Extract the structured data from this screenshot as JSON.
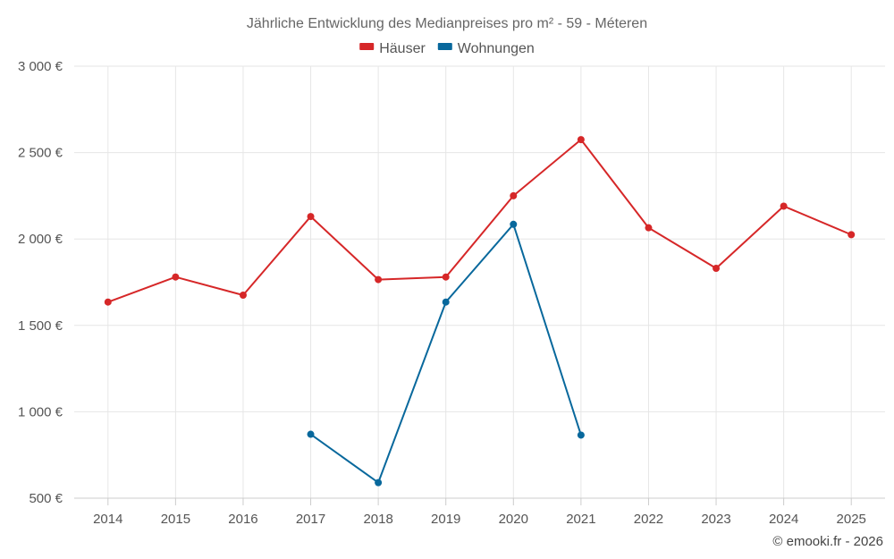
{
  "chart_data": {
    "type": "line",
    "title": "Jährliche Entwicklung des Medianpreises pro m² - 59 - Méteren",
    "xlabel": "",
    "ylabel": "",
    "x": [
      "2014",
      "2015",
      "2016",
      "2017",
      "2018",
      "2019",
      "2020",
      "2021",
      "2022",
      "2023",
      "2024",
      "2025"
    ],
    "ylim": [
      500,
      3000
    ],
    "yticks": [
      500,
      1000,
      1500,
      2000,
      2500,
      3000
    ],
    "ytick_labels": [
      "500 €",
      "1 000 €",
      "1 500 €",
      "2 000 €",
      "2 500 €",
      "3 000 €"
    ],
    "grid": true,
    "legend_position": "top-center",
    "series": [
      {
        "name": "Häuser",
        "color": "#d62728",
        "values": [
          1635,
          1780,
          1675,
          2130,
          1765,
          1780,
          2250,
          2575,
          2065,
          1830,
          2190,
          2025
        ]
      },
      {
        "name": "Wohnungen",
        "color": "#08689c",
        "values": [
          null,
          null,
          null,
          870,
          590,
          1635,
          2085,
          865,
          null,
          null,
          null,
          null
        ]
      }
    ]
  },
  "credit": "© emooki.fr - 2026"
}
